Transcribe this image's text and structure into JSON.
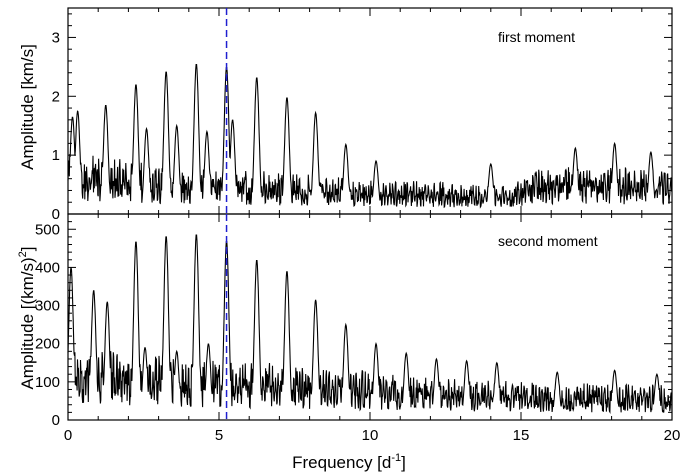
{
  "chart_data": [
    {
      "type": "line",
      "title": "",
      "annotation": "first moment",
      "xlabel": "",
      "ylabel": "Amplitude [km/s]",
      "xlim": [
        0,
        20
      ],
      "ylim": [
        0,
        3.5
      ],
      "yticks": [
        0,
        1,
        2,
        3
      ],
      "xticks": [
        0,
        5,
        10,
        15,
        20
      ],
      "marker_frequency": 5.25,
      "marker_color": "#1f1fd0",
      "line_color": "#000000",
      "peaks": [
        {
          "x": 0.15,
          "y": 1.65
        },
        {
          "x": 0.32,
          "y": 1.75
        },
        {
          "x": 1.25,
          "y": 1.85
        },
        {
          "x": 2.25,
          "y": 2.2
        },
        {
          "x": 2.6,
          "y": 1.45
        },
        {
          "x": 3.25,
          "y": 2.42
        },
        {
          "x": 3.6,
          "y": 1.5
        },
        {
          "x": 4.25,
          "y": 2.55
        },
        {
          "x": 4.6,
          "y": 1.4
        },
        {
          "x": 5.25,
          "y": 2.5
        },
        {
          "x": 5.45,
          "y": 1.6
        },
        {
          "x": 6.25,
          "y": 2.32
        },
        {
          "x": 7.25,
          "y": 1.98
        },
        {
          "x": 8.2,
          "y": 1.72
        },
        {
          "x": 9.2,
          "y": 1.18
        },
        {
          "x": 10.2,
          "y": 0.9
        },
        {
          "x": 14.0,
          "y": 0.85
        },
        {
          "x": 16.8,
          "y": 1.12
        },
        {
          "x": 18.1,
          "y": 1.2
        },
        {
          "x": 19.3,
          "y": 1.05
        }
      ],
      "noise_level": [
        {
          "x": 0,
          "y": 0.6
        },
        {
          "x": 5,
          "y": 0.45
        },
        {
          "x": 10,
          "y": 0.35
        },
        {
          "x": 14.5,
          "y": 0.3
        },
        {
          "x": 16,
          "y": 0.5
        },
        {
          "x": 20,
          "y": 0.45
        }
      ]
    },
    {
      "type": "line",
      "title": "",
      "annotation": "second moment",
      "xlabel": "Frequency [d^-1]",
      "ylabel": "Amplitude [(km/s)^2]",
      "xlim": [
        0,
        20
      ],
      "ylim": [
        0,
        540
      ],
      "yticks": [
        0,
        100,
        200,
        300,
        400,
        500
      ],
      "xticks": [
        0,
        5,
        10,
        15,
        20
      ],
      "marker_frequency": 5.25,
      "marker_color": "#1f1fd0",
      "line_color": "#000000",
      "peaks": [
        {
          "x": 0.1,
          "y": 400
        },
        {
          "x": 0.85,
          "y": 340
        },
        {
          "x": 1.3,
          "y": 310
        },
        {
          "x": 2.25,
          "y": 468
        },
        {
          "x": 2.55,
          "y": 190
        },
        {
          "x": 3.25,
          "y": 482
        },
        {
          "x": 3.6,
          "y": 180
        },
        {
          "x": 4.25,
          "y": 487
        },
        {
          "x": 4.65,
          "y": 200
        },
        {
          "x": 5.25,
          "y": 470
        },
        {
          "x": 6.25,
          "y": 420
        },
        {
          "x": 7.25,
          "y": 390
        },
        {
          "x": 8.2,
          "y": 315
        },
        {
          "x": 9.2,
          "y": 250
        },
        {
          "x": 10.2,
          "y": 200
        },
        {
          "x": 11.2,
          "y": 175
        },
        {
          "x": 12.2,
          "y": 160
        },
        {
          "x": 13.2,
          "y": 155
        },
        {
          "x": 14.2,
          "y": 150
        },
        {
          "x": 16.2,
          "y": 125
        },
        {
          "x": 18.1,
          "y": 130
        },
        {
          "x": 19.5,
          "y": 120
        }
      ],
      "noise_level": [
        {
          "x": 0,
          "y": 110
        },
        {
          "x": 5,
          "y": 95
        },
        {
          "x": 10,
          "y": 75
        },
        {
          "x": 15,
          "y": 60
        },
        {
          "x": 20,
          "y": 55
        }
      ]
    }
  ],
  "labels": {
    "x_axis_title": "Frequency [d",
    "x_axis_title_sup": "-1",
    "x_axis_title_end": "]",
    "top_y_title": "Amplitude [km/s]",
    "bottom_y_title": "Amplitude [(km/s)",
    "bottom_y_title_sup": "2",
    "bottom_y_title_end": "]"
  }
}
